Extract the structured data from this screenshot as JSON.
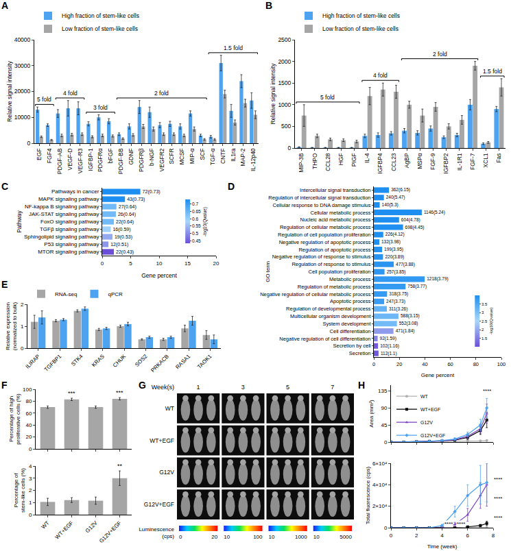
{
  "chart_data": [
    {
      "panel": "A",
      "type": "bar",
      "categories": [
        "EGF",
        "FGF4",
        "PDGF-AB",
        "VEGF-D",
        "VEGF-R3",
        "IGFBP-1",
        "PDGFRα",
        "bFGF",
        "PDGF-BB",
        "GDNF",
        "PDGFRβ",
        "b-NGF",
        "VEGFR2",
        "SCFR",
        "MCSF",
        "MIP-α",
        "SCF",
        "TGF-α",
        "CNTF",
        "IL1ra",
        "MAP-2",
        "IL-12p40"
      ],
      "y_label": "Relative signal intensity",
      "series": [
        {
          "name": "High fraction of stem-like cells",
          "color": "#4da3f0",
          "values": [
            13000,
            7000,
            11500,
            13500,
            13500,
            7500,
            10000,
            8500,
            3500,
            6500,
            14000,
            12000,
            7000,
            7500,
            6500,
            11500,
            3000,
            2500,
            31000,
            12500,
            24000,
            16500
          ],
          "errors": [
            1000,
            500,
            1500,
            3000,
            2500,
            800,
            1000,
            1000,
            500,
            1000,
            2500,
            2000,
            1000,
            1000,
            1000,
            1000,
            500,
            500,
            3000,
            2500,
            2500,
            3000
          ]
        },
        {
          "name": "Low fraction of stem-like cells",
          "color": "#a6a6a6",
          "values": [
            2500,
            1300,
            3000,
            3300,
            3500,
            2500,
            3000,
            2800,
            1800,
            3200,
            6500,
            5500,
            3500,
            3500,
            3000,
            5500,
            1500,
            1500,
            19000,
            8000,
            15500,
            11000
          ],
          "errors": [
            300,
            200,
            500,
            500,
            500,
            400,
            500,
            400,
            300,
            500,
            800,
            800,
            500,
            500,
            500,
            800,
            300,
            300,
            1500,
            1000,
            1500,
            1500
          ]
        }
      ],
      "ylim": [
        0,
        40000
      ],
      "yticks": [
        0,
        10000,
        20000,
        30000,
        40000
      ],
      "grid": false,
      "legend": "top",
      "brackets": [
        {
          "text": "5 fold",
          "from": "EGF",
          "to": "FGF4"
        },
        {
          "text": "4 fold",
          "from": "PDGF-AB",
          "to": "VEGF-R3"
        },
        {
          "text": "3 fold",
          "from": "IGFBP-1",
          "to": "bFGF"
        },
        {
          "text": "2 fold",
          "from": "PDGF-BB",
          "to": "SCF"
        },
        {
          "text": "1.5 fold",
          "from": "TGF-α",
          "to": "IL-12p40"
        }
      ]
    },
    {
      "panel": "B",
      "type": "bar",
      "categories": [
        "MIP-3B",
        "THPO",
        "CCL28",
        "HGF",
        "PIGF",
        "IL-4",
        "IGFBP4",
        "CCL23",
        "AgBP",
        "MSPα",
        "FGF-9",
        "IGFBP2",
        "IL-1R1",
        "FGF-7",
        "XCL1",
        "Fas"
      ],
      "y_label": "Relative signal intensity",
      "series": [
        {
          "name": "High fraction of stem-like cells",
          "color": "#4da3f0",
          "values": [
            20,
            10,
            10,
            10,
            10,
            280,
            300,
            340,
            400,
            350,
            450,
            250,
            300,
            1000,
            100,
            900
          ],
          "errors": [
            10,
            5,
            5,
            5,
            5,
            40,
            50,
            40,
            50,
            50,
            60,
            30,
            40,
            120,
            20,
            60
          ]
        },
        {
          "name": "Low fraction of stem-like cells",
          "color": "#a6a6a6",
          "values": [
            750,
            280,
            200,
            180,
            150,
            1200,
            1350,
            1300,
            1000,
            750,
            950,
            500,
            650,
            1900,
            130,
            1400
          ],
          "errors": [
            250,
            40,
            30,
            30,
            30,
            200,
            150,
            150,
            80,
            150,
            100,
            60,
            100,
            100,
            20,
            200
          ]
        }
      ],
      "ylim": [
        0,
        2500
      ],
      "yticks": [
        0,
        500,
        1000,
        1500,
        2000,
        2500
      ],
      "grid": false,
      "legend": "top",
      "brackets": [
        {
          "text": "5 fold",
          "from": "MIP-3B",
          "to": "PIGF"
        },
        {
          "text": "4 fold",
          "from": "IL-4",
          "to": "CCL23"
        },
        {
          "text": "2 fold",
          "from": "AgBP",
          "to": "FGF-7"
        },
        {
          "text": "1.5 fold",
          "from": "XCL1",
          "to": "Fas"
        }
      ]
    },
    {
      "panel": "C",
      "type": "bar",
      "orientation": "horizontal",
      "categories": [
        "Pathways in cancer",
        "MAPK signaling pathway",
        "NF-kappa B signaling pathway",
        "JAK-STAT signaling pathway",
        "FoxO signaling pathway",
        "TGFβ signaling pathway",
        "Sphingolipid signaling pathway",
        "P53 signaling pathway",
        "MTOR signaling pathway"
      ],
      "values": [
        6.7,
        4.0,
        2.5,
        2.4,
        2.05,
        1.5,
        1.8,
        1.1,
        2.05
      ],
      "bar_texts": [
        "72(0.73)",
        "43(0.73)",
        "27(0.64)",
        "26(0.64)",
        "22(0.64)",
        "16(0.59)",
        "19(0.53)",
        "12(0.51)",
        "22(0.43)"
      ],
      "color_values": [
        0.73,
        0.73,
        0.64,
        0.64,
        0.64,
        0.59,
        0.53,
        0.51,
        0.43
      ],
      "colorbar": {
        "title": "-log10(Qvalue)",
        "range": [
          0.43,
          0.73
        ],
        "ticks": [
          0.45,
          0.5,
          0.55,
          0.6,
          0.65,
          0.7
        ]
      },
      "x_label": "Gene percent",
      "y_label": "Pathway",
      "xlim": [
        0,
        20
      ],
      "xticks": [
        0,
        5,
        10,
        15,
        20
      ],
      "grid": false
    },
    {
      "panel": "D",
      "type": "bar",
      "orientation": "horizontal",
      "categories": [
        "Intercellular signal transduction",
        "Regulation of intercellular signal transduction",
        "Cellular response to DNA damage stimulus",
        "Cellular metabolic process",
        "Nucleic acid metabolic process",
        "Regulation of cellular metabolic process",
        "Regulation of cell population proliferation",
        "Negative regulation of apoptotic process",
        "Regulation of apoptotic process",
        "Negative regulation of response to stimulus",
        "Regulation of response to stimulus",
        "Cell population proliferation",
        "Metabolic process",
        "Regulation of metabolic process",
        "Negative regulation of cellular metabolic process",
        "Apoptotic process",
        "Regulation of developmental process",
        "Multicellular organism development",
        "System development",
        "Cell differentiation",
        "Negative regulation of cell differentiation",
        "Secretion by cell",
        "Secretion"
      ],
      "values": [
        11.9,
        7.9,
        4.6,
        37.6,
        19.8,
        22.9,
        7.4,
        4.3,
        6.5,
        7.2,
        15.6,
        8.4,
        39.9,
        24.9,
        10.4,
        8.1,
        10.2,
        19.3,
        18.1,
        15.4,
        3.0,
        3.3,
        3.7
      ],
      "bar_texts": [
        "362(6.15)",
        "240(5.47)",
        "140(5.3)",
        "1146(5.24)",
        "604(4.78)",
        "698(4.45)",
        "226(4.12)",
        "132(3.98)",
        "199(3.95)",
        "220(3.89)",
        "477(3.88)",
        "257(3.85)",
        "1218(3.79)",
        "758(3.77)",
        "318(3.75)",
        "247(3.73)",
        "311(3.26)",
        "588(3.15)",
        "552(3.08)",
        "471(1.84)",
        "92(1.59)",
        "102(1.16)",
        "112(1.1)"
      ],
      "color_values": [
        6.15,
        5.47,
        5.3,
        5.24,
        4.78,
        4.45,
        4.12,
        3.98,
        3.95,
        3.89,
        3.88,
        3.85,
        3.79,
        3.77,
        3.75,
        3.73,
        3.26,
        3.15,
        3.08,
        1.84,
        1.59,
        1.16,
        1.1
      ],
      "colorbar": {
        "title": "-log10(Qvalue)",
        "range": [
          1,
          4
        ],
        "ticks": [
          1.5,
          2,
          2.5,
          3,
          3.5
        ]
      },
      "x_label": "Gene percent",
      "y_label": "GO term",
      "xlim": [
        0,
        100
      ],
      "xticks": [
        0,
        20,
        40,
        60,
        80,
        100
      ],
      "grid": false
    },
    {
      "panel": "E",
      "type": "bar",
      "categories": [
        "ILIRAP",
        "TGFBP1",
        "STK4",
        "KRAS",
        "CHUK",
        "SOS2",
        "PRKACB",
        "RASA1",
        "TAOK1"
      ],
      "y_label": "Relative expression (normalized to bulk)",
      "series": [
        {
          "name": "RNA-seq",
          "color": "#a6a6a6",
          "values": [
            1.2,
            1.25,
            1.7,
            0.85,
            1.0,
            0.4,
            0.4,
            0.9,
            0.6
          ],
          "errors": [
            0.3,
            0.05,
            0.05,
            0.05,
            0.05,
            0.03,
            0.05,
            0.15,
            0.2
          ]
        },
        {
          "name": "qPCR",
          "color": "#4da3f0",
          "values": [
            1.4,
            1.3,
            1.8,
            0.9,
            1.1,
            0.5,
            0.5,
            1.25,
            0.4
          ],
          "errors": [
            0.3,
            0.05,
            0.08,
            0.05,
            0.08,
            0.05,
            0.05,
            0.2,
            0.2
          ]
        }
      ],
      "ylim": [
        0,
        2
      ],
      "yticks": [
        0,
        1,
        2
      ],
      "grid": false,
      "legend": "top"
    },
    {
      "panel": "F",
      "type": "bar",
      "categories": [
        "WT",
        "WT+EGF",
        "G12V",
        "G12V+EGF"
      ],
      "y_label": "Percentage of high proliferative cells (%)",
      "values": [
        70,
        83,
        70,
        84
      ],
      "errors": [
        2,
        2,
        2,
        2
      ],
      "color": "#a6a6a6",
      "significance": [
        null,
        "***",
        null,
        "***"
      ],
      "ylim": [
        0,
        100
      ],
      "yticks": [
        0,
        20,
        40,
        60,
        80,
        100
      ],
      "grid": false,
      "tick_labels": "y"
    },
    {
      "type": "bar",
      "categories": [
        "WT",
        "WT+EGF",
        "G12V",
        "G12V+EGF"
      ],
      "y_label": "Percentage of stem-like cells (%)",
      "values": [
        1.05,
        1.2,
        1.15,
        3.0
      ],
      "errors": [
        0.3,
        0.2,
        0.3,
        0.6
      ],
      "color": "#a6a6a6",
      "significance": [
        null,
        null,
        null,
        "**"
      ],
      "ylim": [
        0,
        4
      ],
      "yticks": [
        0,
        1,
        2,
        3,
        4
      ],
      "grid": false
    },
    {
      "panel": "H",
      "type": "line",
      "x": [
        0,
        1,
        2,
        3,
        4,
        5,
        6,
        7,
        7.5
      ],
      "y_label": "Area (mm²)",
      "series": [
        {
          "name": "WT",
          "color": "#b0b0b0",
          "marker": "circle",
          "values": [
            0,
            0,
            1,
            1,
            2,
            2,
            3,
            3,
            4
          ],
          "errors": [
            0,
            0,
            0,
            0,
            0,
            1,
            1,
            1,
            1
          ]
        },
        {
          "name": "WT+EGF",
          "color": "#000000",
          "marker": "square",
          "values": [
            0,
            0,
            1,
            2,
            3,
            5,
            12,
            30,
            58
          ],
          "errors": [
            0,
            0,
            0,
            1,
            1,
            2,
            5,
            10,
            20
          ]
        },
        {
          "name": "G12V",
          "color": "#7b3fbf",
          "marker": "triangle-up",
          "values": [
            0,
            0,
            1,
            2,
            3,
            6,
            15,
            35,
            75
          ],
          "errors": [
            0,
            0,
            0,
            1,
            1,
            2,
            5,
            12,
            25
          ]
        },
        {
          "name": "G12V+EGF",
          "color": "#4da3f0",
          "marker": "diamond",
          "values": [
            0,
            0,
            1,
            2,
            4,
            8,
            20,
            45,
            90
          ],
          "errors": [
            0,
            0,
            0,
            1,
            1,
            3,
            6,
            15,
            25
          ]
        }
      ],
      "xlim": [
        0,
        8
      ],
      "xticks": [
        0,
        2,
        4,
        6,
        8
      ],
      "ylim": [
        0,
        150
      ],
      "yticks": [
        0,
        45,
        90,
        135
      ],
      "grid": false,
      "legend": "top left",
      "tick_labels": "y",
      "annotations": [
        {
          "text": "****",
          "x": 7.5,
          "y": 125
        }
      ]
    },
    {
      "type": "line",
      "x": [
        0,
        1,
        2,
        3,
        4,
        5,
        6,
        7,
        7.5
      ],
      "x_label": "Time (week)",
      "y_label": "Total fluorescence (cps)",
      "series": [
        {
          "name": "WT",
          "color": "#b0b0b0",
          "marker": "circle",
          "values": [
            0,
            0,
            0,
            0,
            0,
            0,
            0,
            0,
            0
          ],
          "errors": [
            0,
            0,
            0,
            0,
            0,
            0,
            0,
            0,
            0
          ]
        },
        {
          "name": "WT+EGF",
          "color": "#000000",
          "marker": "square",
          "values": [
            0,
            0,
            0,
            0,
            0,
            200,
            800,
            2000,
            4000
          ],
          "errors": [
            0,
            0,
            0,
            0,
            0,
            100,
            400,
            1000,
            2000
          ]
        },
        {
          "name": "G12V",
          "color": "#7b3fbf",
          "marker": "triangle-up",
          "values": [
            0,
            0,
            0,
            0,
            0,
            3000,
            12000,
            30000,
            40000
          ],
          "errors": [
            0,
            0,
            0,
            0,
            0,
            2000,
            6000,
            12000,
            20000
          ]
        },
        {
          "name": "G12V+EGF",
          "color": "#4da3f0",
          "marker": "diamond",
          "values": [
            0,
            0,
            0,
            0,
            2000,
            15000,
            30000,
            40000,
            42000
          ],
          "errors": [
            0,
            0,
            0,
            0,
            1000,
            5000,
            10000,
            18000,
            18000
          ]
        }
      ],
      "xlim": [
        0,
        8
      ],
      "xticks": [
        0,
        2,
        4,
        6,
        8
      ],
      "ylim": [
        0,
        60000
      ],
      "yticks": [
        0,
        {
          "value": 20000,
          "label": "2×10⁴"
        },
        {
          "value": 40000,
          "label": "4×10⁴"
        },
        {
          "value": 60000,
          "label": "6×10⁴"
        }
      ],
      "grid": false,
      "annotations": [
        {
          "text": "****",
          "x": 4.5,
          "y": 0
        },
        {
          "text": "****",
          "x": 5.5,
          "y": 0
        },
        {
          "text": "****",
          "x": 8,
          "y": 45000
        },
        {
          "text": "****",
          "x": 8,
          "y": 27000
        },
        {
          "text": "****",
          "x": 8,
          "y": 9000
        }
      ]
    }
  ],
  "image_panel": {
    "panel": "G",
    "header": "Week(s)",
    "columns": [
      "1",
      "3",
      "5",
      "7"
    ],
    "rows": [
      "WT",
      "WT+EGF",
      "G12V",
      "G12V+EGF"
    ],
    "colorbar_title": "Luminescence (cps)",
    "colorbars": [
      [
        0,
        20
      ],
      [
        10,
        100
      ],
      [
        10,
        1000
      ],
      [
        10,
        5000
      ]
    ]
  }
}
